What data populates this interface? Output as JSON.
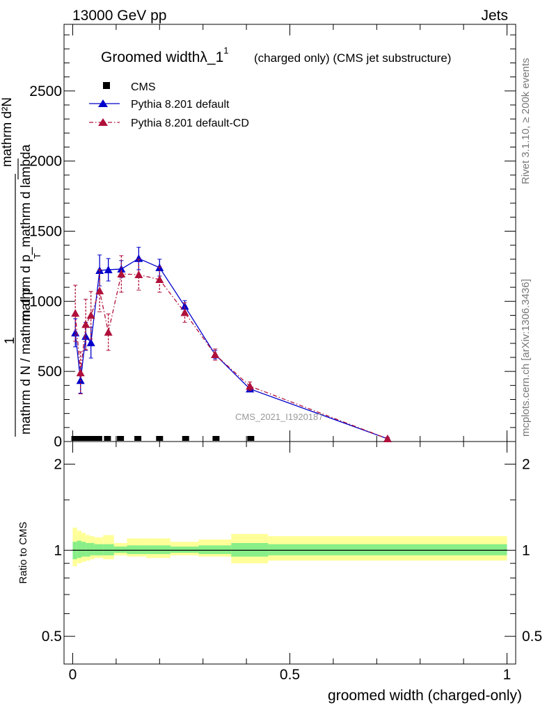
{
  "header": {
    "left": "13000 GeV pp",
    "right": "Jets"
  },
  "title": {
    "main": "Groomed widthλ_1",
    "sup": "1",
    "sub": "(charged only) (CMS jet substructure)"
  },
  "side_labels": {
    "rivet": "Rivet 3.1.10, ≥ 200k events",
    "mcplots": "mcplots.cern.ch [arXiv:1306.3436]"
  },
  "watermark": "CMS_2021_I1920187",
  "main_ylabel": {
    "numerator": "mathrm d²N",
    "one": "1",
    "denominator": "mathrm d N / mathrm d p",
    "lambda_part": "mathrm d p_mathrm d lambda",
    "sub_t": "T"
  },
  "ratio_ylabel": "Ratio to CMS",
  "xlabel": "groomed width (charged-only)",
  "chart_data": [
    {
      "type": "line",
      "panel": "main",
      "xlim": [
        -0.02,
        1.02
      ],
      "ylim": [
        0,
        2975
      ],
      "x_ticks": [
        {
          "v": 0,
          "label": "0"
        },
        {
          "v": 0.5,
          "label": "0.5"
        },
        {
          "v": 1,
          "label": "1"
        }
      ],
      "y_ticks": [
        {
          "v": 0,
          "label": "0"
        },
        {
          "v": 500,
          "label": "500"
        },
        {
          "v": 1000,
          "label": "1000"
        },
        {
          "v": 1500,
          "label": "1500"
        },
        {
          "v": 2000,
          "label": "2000"
        },
        {
          "v": 2500,
          "label": "2500"
        }
      ],
      "legend_position": "top-left",
      "series": [
        {
          "name": "CMS",
          "color": "#000000",
          "marker": "square",
          "x": [
            0.005,
            0.015,
            0.025,
            0.035,
            0.045,
            0.06,
            0.08,
            0.11,
            0.15,
            0.2,
            0.26,
            0.33,
            0.41
          ],
          "y": [
            0,
            0,
            0,
            0,
            0,
            0,
            0,
            0,
            0,
            0,
            0,
            0,
            0
          ]
        },
        {
          "name": "Pythia 8.201 default",
          "color": "#0000cc",
          "marker": "triangle",
          "line": "solid",
          "x": [
            0.006,
            0.018,
            0.03,
            0.042,
            0.062,
            0.082,
            0.112,
            0.152,
            0.2,
            0.258,
            0.328,
            0.408,
            0.725
          ],
          "y": [
            775,
            435,
            750,
            705,
            1220,
            1225,
            1230,
            1305,
            1240,
            965,
            620,
            375,
            20
          ],
          "err": [
            100,
            90,
            100,
            110,
            110,
            80,
            60,
            80,
            60,
            40,
            30,
            20,
            10
          ]
        },
        {
          "name": "Pythia 8.201 default-CD",
          "color": "#b0103a",
          "marker": "triangle",
          "line": "dash-dot",
          "x": [
            0.006,
            0.018,
            0.03,
            0.042,
            0.062,
            0.082,
            0.112,
            0.152,
            0.2,
            0.258,
            0.328,
            0.408,
            0.725
          ],
          "y": [
            915,
            490,
            835,
            900,
            1075,
            780,
            1195,
            1190,
            1155,
            920,
            620,
            395,
            20
          ],
          "err": [
            200,
            150,
            180,
            170,
            150,
            130,
            130,
            110,
            90,
            70,
            40,
            30,
            10
          ]
        }
      ]
    },
    {
      "type": "area",
      "panel": "ratio",
      "xlim": [
        -0.02,
        1.02
      ],
      "ylim": [
        0.4,
        2.4
      ],
      "log_y": true,
      "x_ticks": [
        {
          "v": 0,
          "label": "0"
        },
        {
          "v": 0.5,
          "label": "0.5"
        },
        {
          "v": 1,
          "label": "1"
        }
      ],
      "y_ticks": [
        {
          "v": 0.5,
          "label": "0.5"
        },
        {
          "v": 1,
          "label": "1"
        },
        {
          "v": 2,
          "label": "2"
        }
      ],
      "reference": 1,
      "bins": [
        {
          "x0": 0.0,
          "x1": 0.01,
          "inner": [
            0.93,
            1.07
          ],
          "outer": [
            0.88,
            1.2
          ]
        },
        {
          "x0": 0.01,
          "x1": 0.02,
          "inner": [
            0.94,
            1.08
          ],
          "outer": [
            0.9,
            1.17
          ]
        },
        {
          "x0": 0.02,
          "x1": 0.03,
          "inner": [
            0.95,
            1.07
          ],
          "outer": [
            0.91,
            1.15
          ]
        },
        {
          "x0": 0.03,
          "x1": 0.04,
          "inner": [
            0.95,
            1.06
          ],
          "outer": [
            0.92,
            1.13
          ]
        },
        {
          "x0": 0.04,
          "x1": 0.05,
          "inner": [
            0.96,
            1.06
          ],
          "outer": [
            0.93,
            1.12
          ]
        },
        {
          "x0": 0.05,
          "x1": 0.07,
          "inner": [
            0.96,
            1.05
          ],
          "outer": [
            0.94,
            1.11
          ]
        },
        {
          "x0": 0.07,
          "x1": 0.095,
          "inner": [
            0.96,
            1.05
          ],
          "outer": [
            0.93,
            1.13
          ]
        },
        {
          "x0": 0.095,
          "x1": 0.125,
          "inner": [
            0.98,
            1.03
          ],
          "outer": [
            0.96,
            1.06
          ]
        },
        {
          "x0": 0.125,
          "x1": 0.17,
          "inner": [
            0.97,
            1.04
          ],
          "outer": [
            0.95,
            1.1
          ]
        },
        {
          "x0": 0.17,
          "x1": 0.225,
          "inner": [
            0.97,
            1.04
          ],
          "outer": [
            0.94,
            1.1
          ]
        },
        {
          "x0": 0.225,
          "x1": 0.29,
          "inner": [
            0.98,
            1.03
          ],
          "outer": [
            0.96,
            1.07
          ]
        },
        {
          "x0": 0.29,
          "x1": 0.365,
          "inner": [
            0.97,
            1.04
          ],
          "outer": [
            0.95,
            1.09
          ]
        },
        {
          "x0": 0.365,
          "x1": 0.45,
          "inner": [
            0.95,
            1.06
          ],
          "outer": [
            0.9,
            1.14
          ]
        },
        {
          "x0": 0.45,
          "x1": 1.0,
          "inner": [
            0.96,
            1.05
          ],
          "outer": [
            0.92,
            1.12
          ]
        }
      ]
    }
  ]
}
